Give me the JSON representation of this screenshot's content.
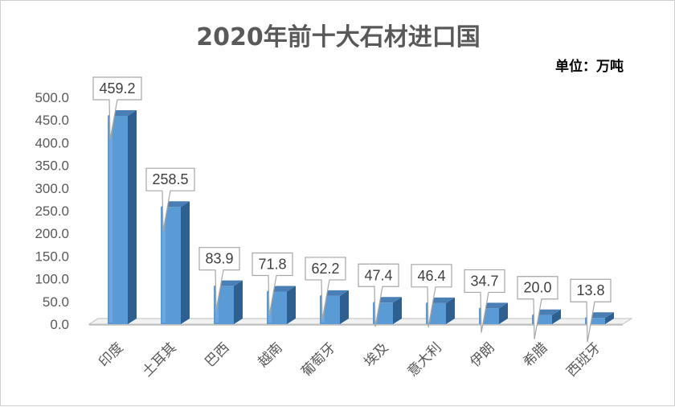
{
  "chart_data": {
    "type": "bar",
    "title": "2020年前十大石材进口国",
    "unit_label": "单位：万吨",
    "categories": [
      "印度",
      "土耳其",
      "巴西",
      "越南",
      "葡萄牙",
      "埃及",
      "意大利",
      "伊朗",
      "希腊",
      "西班牙"
    ],
    "values": [
      459.2,
      258.5,
      83.9,
      71.8,
      62.2,
      47.4,
      46.4,
      34.7,
      20.0,
      13.8
    ],
    "value_labels": [
      "459.2",
      "258.5",
      "83.9",
      "71.8",
      "62.2",
      "47.4",
      "46.4",
      "34.7",
      "20.0",
      "13.8"
    ],
    "yticks": [
      "0.0",
      "50.0",
      "100.0",
      "150.0",
      "200.0",
      "250.0",
      "300.0",
      "350.0",
      "400.0",
      "450.0",
      "500.0"
    ],
    "ylim": [
      0,
      500
    ],
    "grid": false,
    "legend": "none",
    "colors": {
      "bar_front": "#5b9bd5",
      "bar_side": "#2e5f8e",
      "bar_top": "#4a7fb5",
      "floor": "#bfbfbf",
      "callout_border": "#a6a6a6",
      "text": "#595959"
    }
  }
}
